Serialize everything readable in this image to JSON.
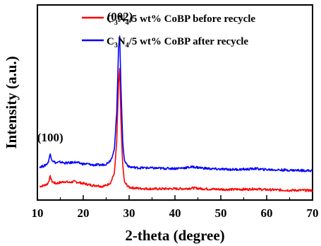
{
  "chart_data": {
    "type": "line",
    "title": "",
    "xlabel": "2-theta (degree)",
    "ylabel": "Intensity (a.u.)",
    "xlim": [
      10,
      70
    ],
    "ylim": [
      0,
      1.0
    ],
    "x_ticks": [
      "10",
      "20",
      "30",
      "40",
      "50",
      "60",
      "70"
    ],
    "y_ticks_shown": false,
    "grid": false,
    "legend_position": "top-right",
    "series": [
      {
        "name_main": "C",
        "name_sub1": "3",
        "name_mid": "N",
        "name_sub2": "4",
        "name_rest": "/5 wt% CoBP before recycle",
        "color": "#ff0000",
        "points": [
          [
            10.5,
            0.07
          ],
          [
            11.5,
            0.075
          ],
          [
            12.3,
            0.085
          ],
          [
            12.8,
            0.12
          ],
          [
            13.2,
            0.095
          ],
          [
            14.0,
            0.085
          ],
          [
            15.0,
            0.09
          ],
          [
            16.0,
            0.095
          ],
          [
            17.0,
            0.09
          ],
          [
            18.0,
            0.095
          ],
          [
            19.0,
            0.09
          ],
          [
            20.0,
            0.085
          ],
          [
            21.0,
            0.08
          ],
          [
            22.0,
            0.075
          ],
          [
            23.0,
            0.075
          ],
          [
            24.0,
            0.07
          ],
          [
            25.0,
            0.075
          ],
          [
            26.0,
            0.09
          ],
          [
            26.8,
            0.14
          ],
          [
            27.3,
            0.3
          ],
          [
            27.7,
            0.6
          ],
          [
            27.95,
            0.67
          ],
          [
            28.2,
            0.42
          ],
          [
            28.6,
            0.18
          ],
          [
            29.0,
            0.09
          ],
          [
            30.0,
            0.065
          ],
          [
            32.0,
            0.06
          ],
          [
            34.0,
            0.058
          ],
          [
            36.0,
            0.057
          ],
          [
            38.0,
            0.058
          ],
          [
            40.0,
            0.058
          ],
          [
            42.0,
            0.058
          ],
          [
            44.0,
            0.062
          ],
          [
            46.0,
            0.058
          ],
          [
            48.0,
            0.056
          ],
          [
            50.0,
            0.055
          ],
          [
            52.0,
            0.054
          ],
          [
            54.0,
            0.055
          ],
          [
            56.0,
            0.055
          ],
          [
            57.5,
            0.058
          ],
          [
            59.0,
            0.054
          ],
          [
            62.0,
            0.052
          ],
          [
            65.0,
            0.05
          ],
          [
            68.0,
            0.05
          ],
          [
            70.0,
            0.049
          ]
        ]
      },
      {
        "name_main": "C",
        "name_sub1": "3",
        "name_mid": "N",
        "name_sub2": "4",
        "name_rest": "/5 wt% CoBP after recycle",
        "color": "#0000ff",
        "points": [
          [
            10.5,
            0.17
          ],
          [
            11.5,
            0.175
          ],
          [
            12.3,
            0.19
          ],
          [
            12.8,
            0.235
          ],
          [
            13.2,
            0.205
          ],
          [
            14.0,
            0.19
          ],
          [
            15.0,
            0.195
          ],
          [
            16.0,
            0.19
          ],
          [
            17.0,
            0.19
          ],
          [
            18.0,
            0.195
          ],
          [
            19.0,
            0.19
          ],
          [
            20.0,
            0.185
          ],
          [
            21.0,
            0.185
          ],
          [
            22.0,
            0.18
          ],
          [
            23.0,
            0.18
          ],
          [
            24.0,
            0.18
          ],
          [
            25.0,
            0.185
          ],
          [
            26.0,
            0.205
          ],
          [
            26.8,
            0.26
          ],
          [
            27.3,
            0.45
          ],
          [
            27.7,
            0.78
          ],
          [
            27.95,
            0.84
          ],
          [
            28.2,
            0.6
          ],
          [
            28.6,
            0.3
          ],
          [
            29.0,
            0.2
          ],
          [
            30.0,
            0.17
          ],
          [
            32.0,
            0.165
          ],
          [
            34.0,
            0.165
          ],
          [
            36.0,
            0.163
          ],
          [
            38.0,
            0.162
          ],
          [
            40.0,
            0.162
          ],
          [
            42.0,
            0.165
          ],
          [
            44.0,
            0.17
          ],
          [
            46.0,
            0.164
          ],
          [
            48.0,
            0.16
          ],
          [
            50.0,
            0.158
          ],
          [
            52.0,
            0.157
          ],
          [
            54.0,
            0.157
          ],
          [
            56.0,
            0.158
          ],
          [
            57.5,
            0.162
          ],
          [
            59.0,
            0.157
          ],
          [
            62.0,
            0.155
          ],
          [
            65.0,
            0.153
          ],
          [
            68.0,
            0.152
          ],
          [
            70.0,
            0.15
          ]
        ]
      }
    ],
    "annotations": [
      {
        "text": "(100)",
        "x": 12.8,
        "y": 0.3
      },
      {
        "text": "(002)",
        "x": 28.0,
        "y": 0.92
      }
    ]
  }
}
